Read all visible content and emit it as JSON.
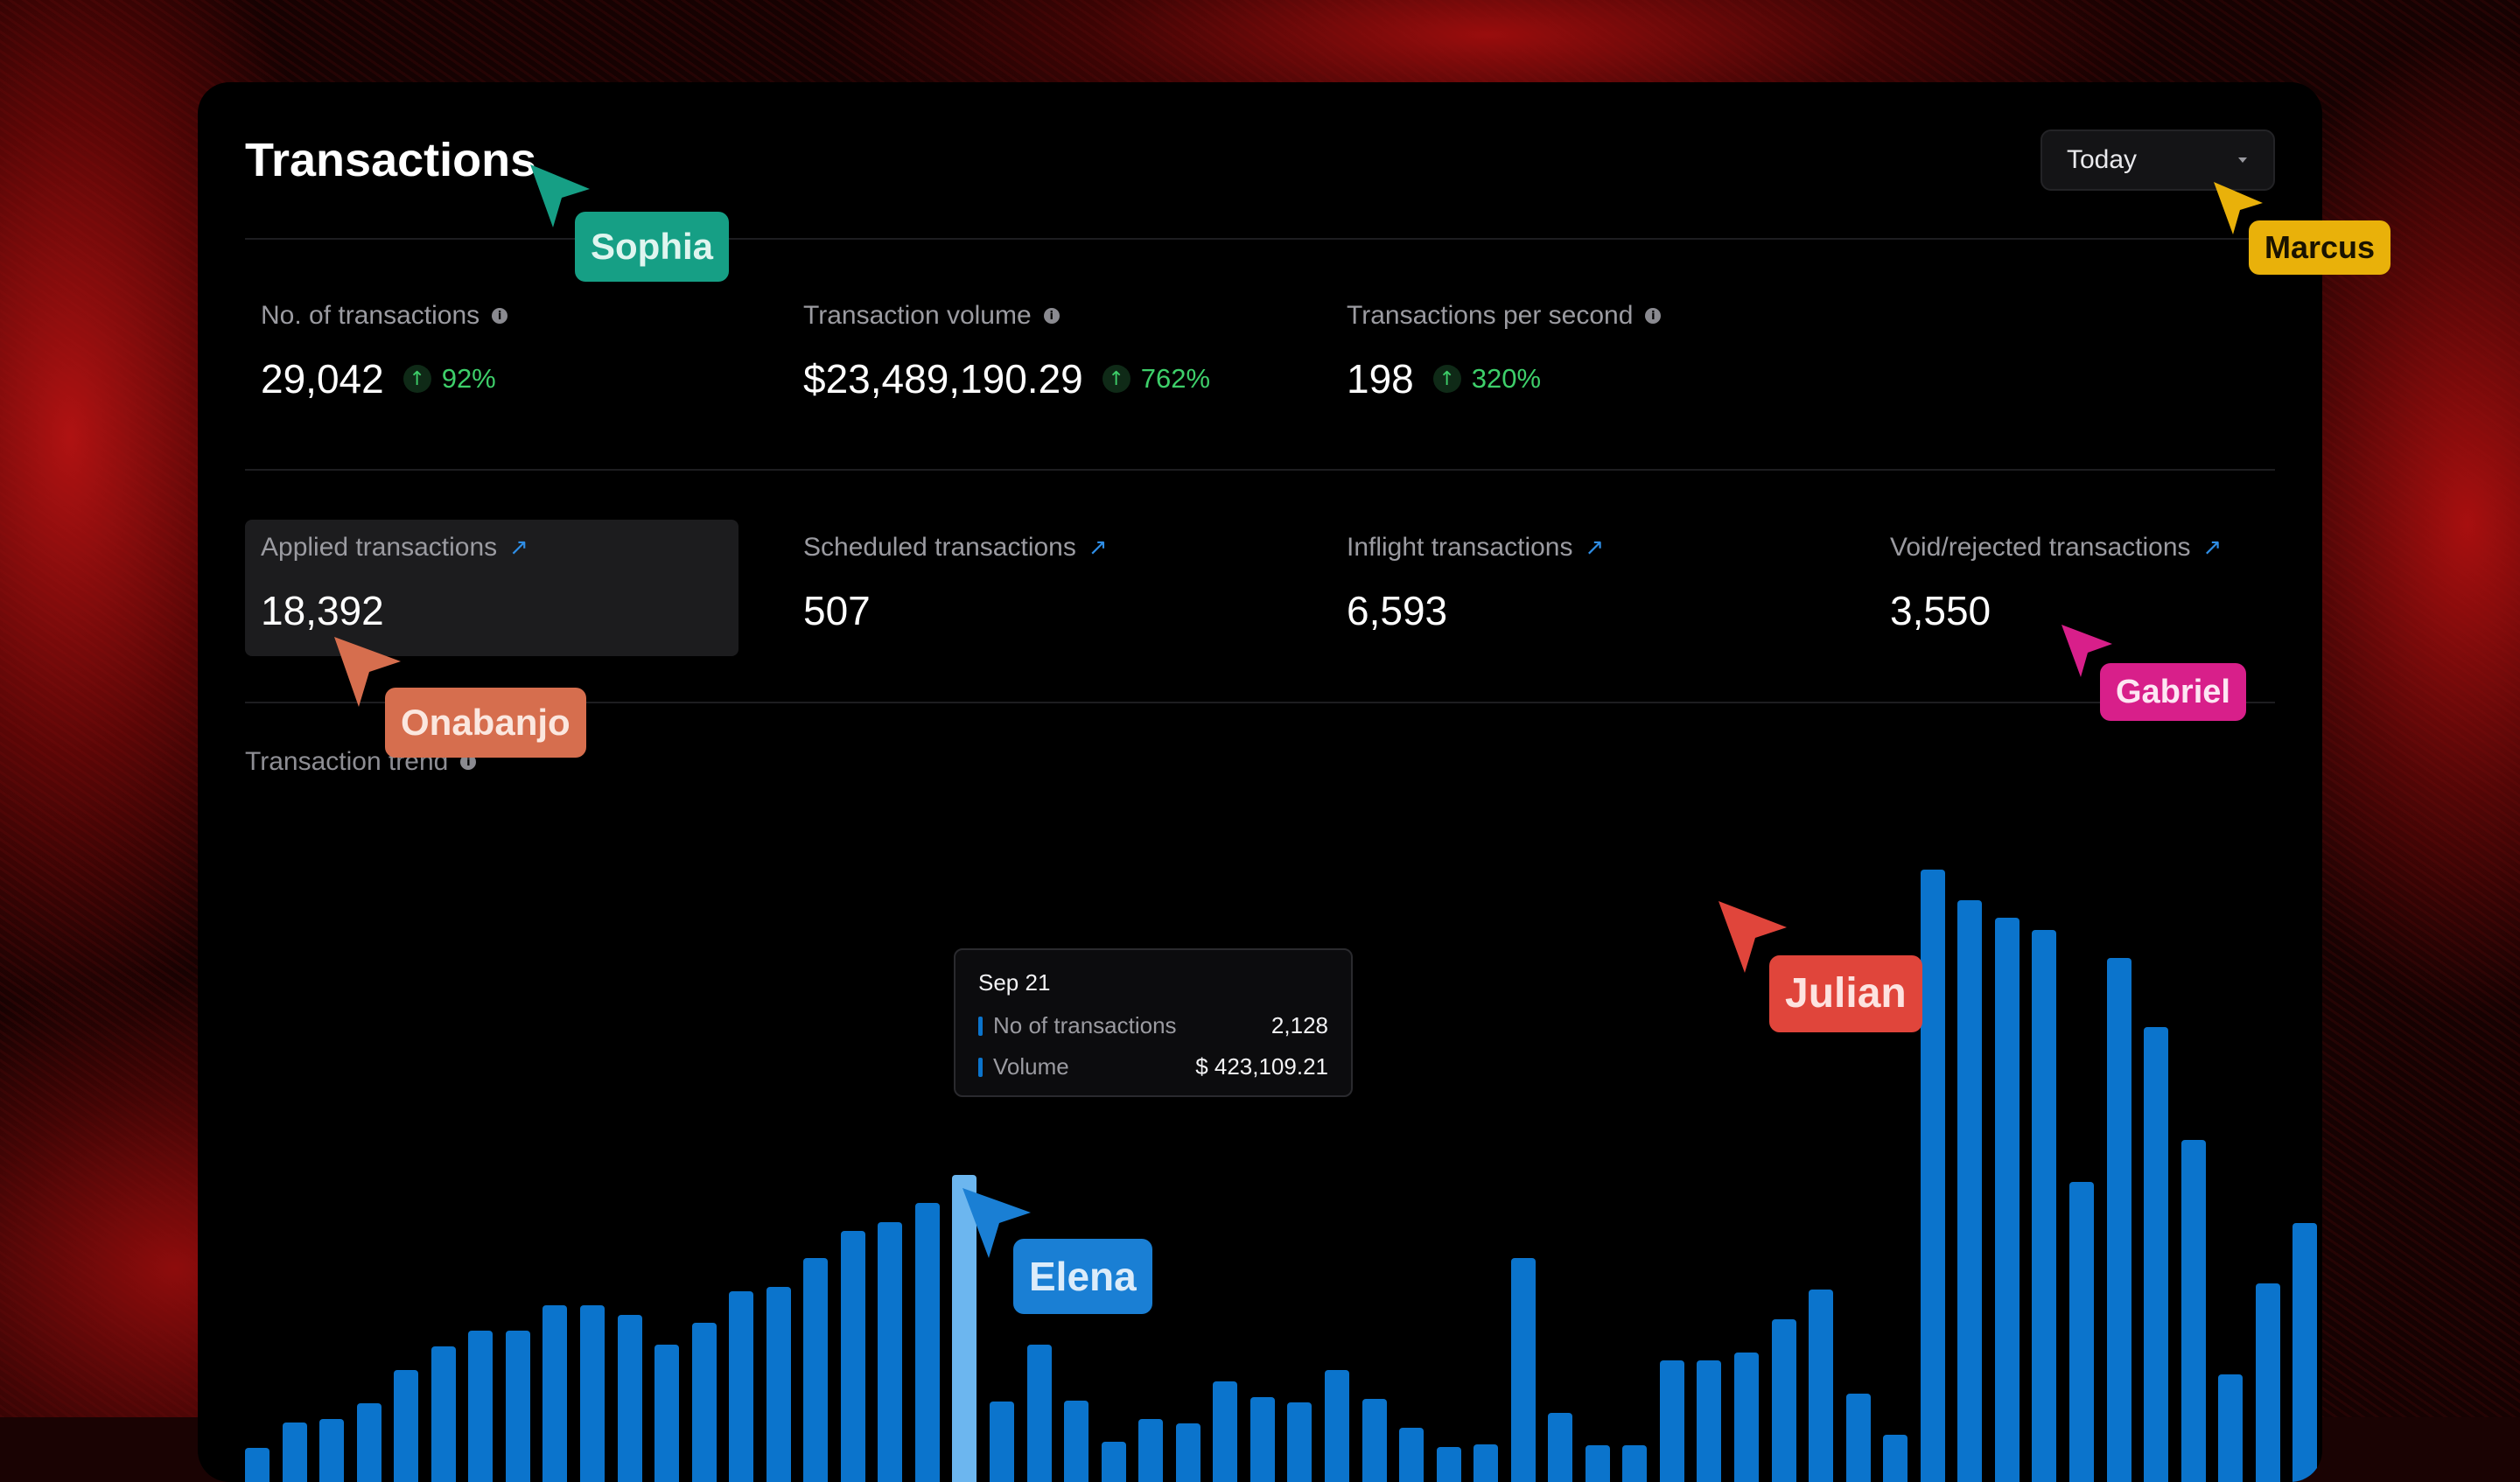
{
  "header": {
    "title": "Transactions",
    "period": "Today"
  },
  "metrics": [
    {
      "label": "No. of transactions",
      "value": "29,042",
      "change": "92%"
    },
    {
      "label": "Transaction volume",
      "value": "$23,489,190.29",
      "change": "762%"
    },
    {
      "label": "Transactions per second",
      "value": "198",
      "change": "320%"
    }
  ],
  "categories": [
    {
      "label": "Applied transactions",
      "value": "18,392"
    },
    {
      "label": "Scheduled transactions",
      "value": "507"
    },
    {
      "label": "Inflight transactions",
      "value": "6,593"
    },
    {
      "label": "Void/rejected transactions",
      "value": "3,550"
    }
  ],
  "trend": {
    "label": "Transaction trend"
  },
  "tooltip": {
    "date": "Sep 21",
    "rows": [
      {
        "name": "No of transactions",
        "value": "2,128"
      },
      {
        "name": "Volume",
        "value": "$ 423,109.21"
      }
    ]
  },
  "chart_data": {
    "type": "bar",
    "series": [
      {
        "values": [
          38,
          67,
          71,
          88,
          125,
          152,
          170,
          170,
          198,
          198,
          187,
          154,
          178,
          214,
          219,
          251,
          281,
          291,
          313,
          344,
          90,
          154,
          91,
          45,
          71,
          66,
          113,
          95,
          89,
          125,
          93,
          61,
          39,
          42,
          251,
          77,
          41,
          41,
          136,
          136,
          145,
          182,
          216,
          99,
          53,
          686,
          652,
          632,
          618,
          336,
          587,
          510,
          383,
          121,
          222,
          290
        ]
      }
    ],
    "highlight_index": 19
  },
  "collaborators": [
    {
      "name": "Sophia",
      "color": "#169f85"
    },
    {
      "name": "Marcus",
      "color": "#e9b10a"
    },
    {
      "name": "Onabanjo",
      "color": "#d66e4e"
    },
    {
      "name": "Gabriel",
      "color": "#d81f8a"
    },
    {
      "name": "Julian",
      "color": "#e0453b"
    },
    {
      "name": "Elena",
      "color": "#1a7fd4"
    }
  ],
  "colors": {
    "accent": "#0b74cc",
    "positive": "#3ecf6a",
    "link": "#2f8ee6",
    "highlight_bar": "#6cb6ef"
  }
}
